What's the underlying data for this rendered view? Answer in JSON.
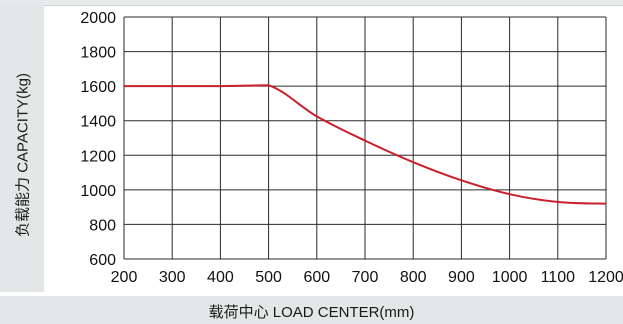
{
  "chart_data": {
    "type": "line",
    "title": "",
    "xlabel": "载荷中心 LOAD CENTER(mm)",
    "ylabel": "负载能力 CAPACITY(kg)",
    "xlim": [
      200,
      1200
    ],
    "ylim": [
      600,
      2000
    ],
    "xticks": [
      200,
      300,
      400,
      500,
      600,
      700,
      800,
      900,
      1000,
      1100,
      1200
    ],
    "yticks": [
      600,
      800,
      1000,
      1200,
      1400,
      1600,
      1800,
      2000
    ],
    "grid": true,
    "series": [
      {
        "color": "#c8202a",
        "x": [
          200,
          300,
          400,
          500,
          600,
          700,
          800,
          900,
          1000,
          1100,
          1200
        ],
        "y": [
          1600,
          1600,
          1600,
          1605,
          1425,
          1285,
          1160,
          1055,
          975,
          930,
          920
        ]
      }
    ]
  }
}
